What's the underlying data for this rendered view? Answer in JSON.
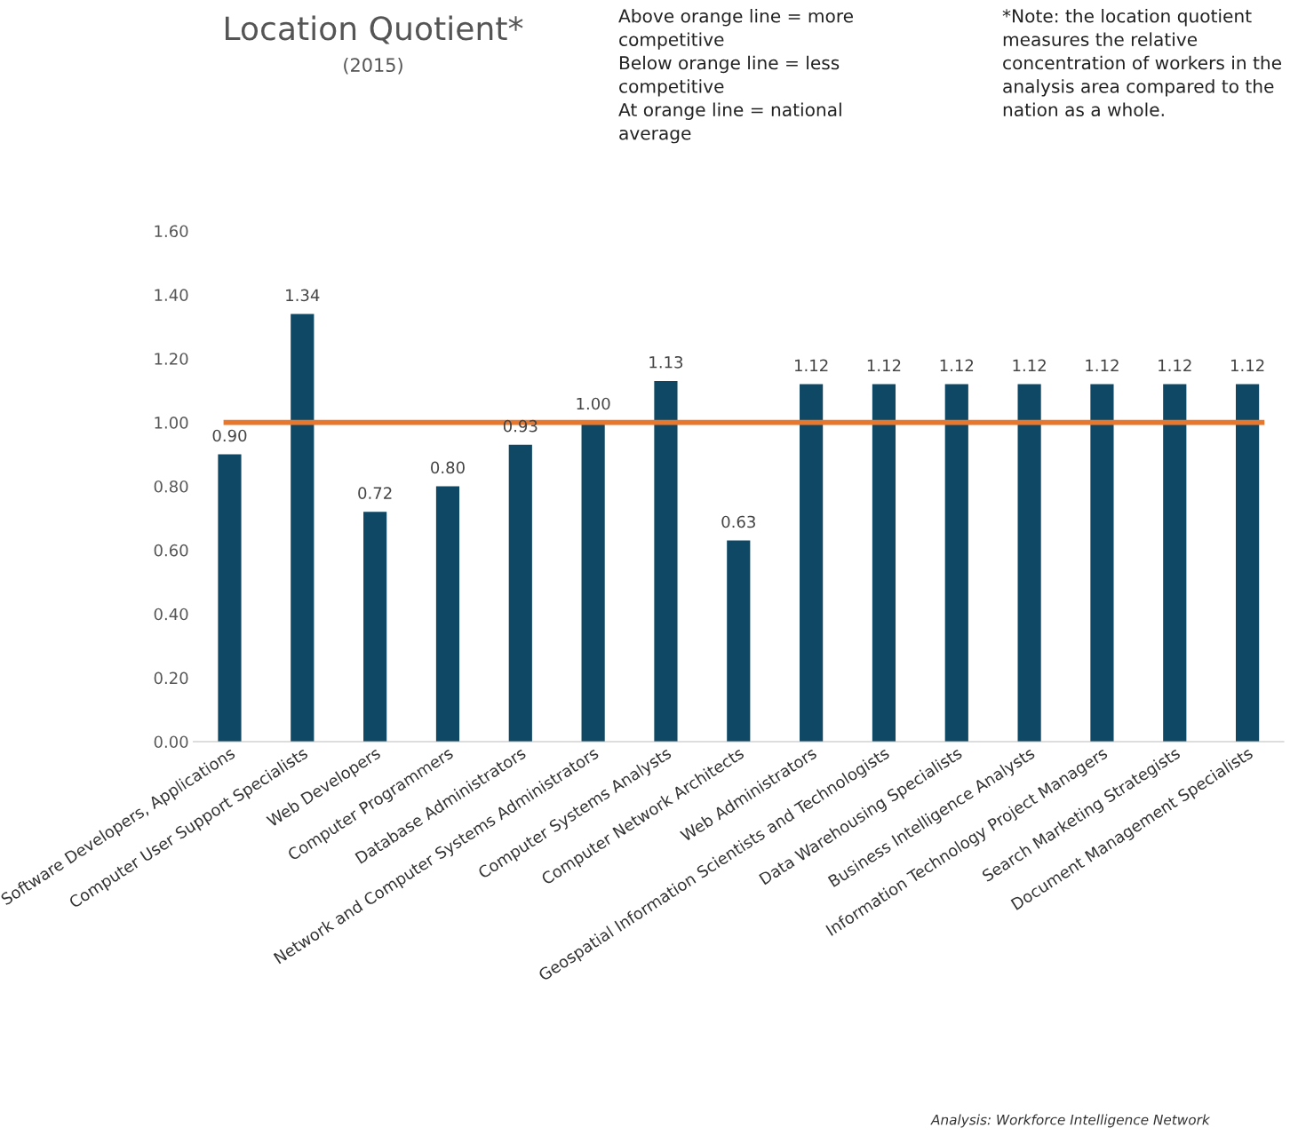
{
  "chart_data": {
    "type": "bar",
    "title": "Location Quotient*",
    "subtitle": "(2015)",
    "categories": [
      "Software Developers, Applications",
      "Computer User Support Specialists",
      "Web Developers",
      "Computer Programmers",
      "Database Administrators",
      "Network and Computer Systems Administrators",
      "Computer Systems Analysts",
      "Computer Network Architects",
      "Web Administrators",
      "Geospatial Information Scientists and Technologists",
      "Data Warehousing Specialists",
      "Business Intelligence Analysts",
      "Information Technology Project Managers",
      "Search Marketing Strategists",
      "Document Management Specialists"
    ],
    "values": [
      0.9,
      1.34,
      0.72,
      0.8,
      0.93,
      1.0,
      1.13,
      0.63,
      1.12,
      1.12,
      1.12,
      1.12,
      1.12,
      1.12,
      1.12
    ],
    "value_labels": [
      "0.90",
      "1.34",
      "0.72",
      "0.80",
      "0.93",
      "1.00",
      "1.13",
      "0.63",
      "1.12",
      "1.12",
      "1.12",
      "1.12",
      "1.12",
      "1.12",
      "1.12"
    ],
    "color": "#0f4865",
    "ylim": [
      0,
      1.6
    ],
    "yticks": [
      {
        "value": 0,
        "label": "0.00"
      },
      {
        "value": 0.2,
        "label": "0.20"
      },
      {
        "value": 0.4,
        "label": "0.40"
      },
      {
        "value": 0.6,
        "label": "0.60"
      },
      {
        "value": 0.8,
        "label": "0.80"
      },
      {
        "value": 1.0,
        "label": "1.00"
      },
      {
        "value": 1.2,
        "label": "1.20"
      },
      {
        "value": 1.4,
        "label": "1.40"
      },
      {
        "value": 1.6,
        "label": "1.60"
      }
    ],
    "ref_lines": [
      {
        "axis": "y",
        "value": 1.0,
        "color": "#e8772e"
      }
    ],
    "annotations": [
      "Above orange line = more competitive\nBelow orange line = less competitive\nAt orange line = national average",
      "*Note: the location quotient measures the relative concentration of workers in the analysis area compared to the nation as a whole.",
      "Analysis: Workforce Intelligence Network"
    ],
    "grid": false,
    "legend": false
  }
}
